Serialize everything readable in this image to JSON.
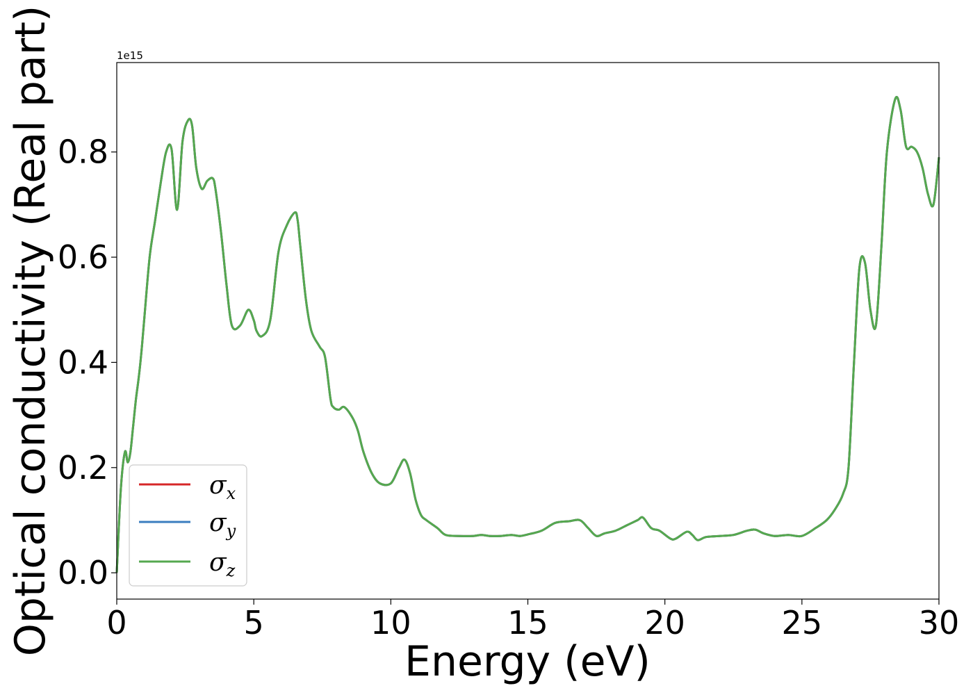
{
  "chart_data": {
    "type": "line",
    "xlabel": "Energy (eV)",
    "ylabel": "Optical conductivity (Real part)",
    "y_offset_label": "1e15",
    "xlim": [
      0,
      30
    ],
    "ylim": [
      -0.05,
      0.97
    ],
    "x_ticks": [
      0,
      5,
      10,
      15,
      20,
      25,
      30
    ],
    "x_tick_labels": [
      "0",
      "5",
      "10",
      "15",
      "20",
      "25",
      "30"
    ],
    "y_ticks": [
      0.0,
      0.2,
      0.4,
      0.6,
      0.8
    ],
    "y_tick_labels": [
      "0.0",
      "0.2",
      "0.4",
      "0.6",
      "0.8"
    ],
    "grid": false,
    "legend_position": "lower-left",
    "colors": {
      "sigma_x": "#d62728",
      "sigma_y": "#3a7dbf",
      "sigma_z": "#55a84f"
    },
    "x": [
      0.0,
      0.15,
      0.3,
      0.4,
      0.5,
      0.6,
      0.7,
      0.8,
      0.9,
      1.0,
      1.2,
      1.4,
      1.6,
      1.8,
      2.0,
      2.2,
      2.4,
      2.6,
      2.75,
      2.9,
      3.1,
      3.3,
      3.5,
      3.6,
      3.8,
      4.0,
      4.2,
      4.5,
      4.8,
      5.0,
      5.1,
      5.3,
      5.6,
      5.9,
      6.2,
      6.5,
      6.6,
      6.7,
      6.9,
      7.1,
      7.4,
      7.6,
      7.8,
      7.9,
      8.1,
      8.3,
      8.6,
      8.8,
      9.0,
      9.3,
      9.6,
      10.0,
      10.3,
      10.5,
      10.7,
      10.9,
      11.1,
      11.3,
      11.7,
      12.0,
      12.5,
      13.0,
      13.3,
      13.6,
      14.0,
      14.4,
      14.7,
      15.0,
      15.5,
      16.0,
      16.5,
      16.9,
      17.2,
      17.5,
      17.8,
      18.2,
      18.6,
      19.0,
      19.2,
      19.5,
      19.8,
      20.2,
      20.4,
      20.8,
      21.0,
      21.2,
      21.5,
      22.0,
      22.5,
      23.0,
      23.3,
      23.6,
      24.0,
      24.5,
      25.0,
      25.5,
      25.9,
      26.2,
      26.5,
      26.7,
      26.9,
      27.1,
      27.3,
      27.5,
      27.7,
      27.9,
      28.1,
      28.4,
      28.6,
      28.8,
      29.0,
      29.2,
      29.4,
      29.6,
      29.8,
      30.0
    ],
    "series": [
      {
        "name": "σx",
        "label_base": "σ",
        "label_sub": "x",
        "values": [
          0.0,
          0.16,
          0.23,
          0.21,
          0.23,
          0.28,
          0.33,
          0.37,
          0.42,
          0.48,
          0.6,
          0.67,
          0.74,
          0.8,
          0.805,
          0.69,
          0.82,
          0.86,
          0.85,
          0.77,
          0.73,
          0.745,
          0.75,
          0.73,
          0.65,
          0.55,
          0.47,
          0.47,
          0.5,
          0.48,
          0.46,
          0.45,
          0.48,
          0.61,
          0.66,
          0.685,
          0.67,
          0.62,
          0.52,
          0.46,
          0.43,
          0.41,
          0.33,
          0.315,
          0.31,
          0.315,
          0.295,
          0.27,
          0.23,
          0.19,
          0.17,
          0.17,
          0.2,
          0.215,
          0.19,
          0.14,
          0.11,
          0.1,
          0.085,
          0.072,
          0.07,
          0.07,
          0.072,
          0.07,
          0.07,
          0.072,
          0.07,
          0.073,
          0.08,
          0.095,
          0.098,
          0.1,
          0.085,
          0.07,
          0.075,
          0.08,
          0.09,
          0.1,
          0.105,
          0.085,
          0.08,
          0.065,
          0.065,
          0.078,
          0.072,
          0.062,
          0.068,
          0.07,
          0.072,
          0.08,
          0.082,
          0.075,
          0.07,
          0.072,
          0.07,
          0.085,
          0.1,
          0.12,
          0.15,
          0.2,
          0.4,
          0.58,
          0.59,
          0.5,
          0.47,
          0.62,
          0.8,
          0.9,
          0.88,
          0.81,
          0.81,
          0.8,
          0.77,
          0.72,
          0.7,
          0.79
        ]
      },
      {
        "name": "σy",
        "label_base": "σ",
        "label_sub": "y",
        "values": [
          0.0,
          0.16,
          0.23,
          0.21,
          0.23,
          0.28,
          0.33,
          0.37,
          0.42,
          0.48,
          0.6,
          0.67,
          0.74,
          0.8,
          0.805,
          0.69,
          0.82,
          0.86,
          0.85,
          0.77,
          0.73,
          0.745,
          0.75,
          0.73,
          0.65,
          0.55,
          0.47,
          0.47,
          0.5,
          0.48,
          0.46,
          0.45,
          0.48,
          0.61,
          0.66,
          0.685,
          0.67,
          0.62,
          0.52,
          0.46,
          0.43,
          0.41,
          0.33,
          0.315,
          0.31,
          0.315,
          0.295,
          0.27,
          0.23,
          0.19,
          0.17,
          0.17,
          0.2,
          0.215,
          0.19,
          0.14,
          0.11,
          0.1,
          0.085,
          0.072,
          0.07,
          0.07,
          0.072,
          0.07,
          0.07,
          0.072,
          0.07,
          0.073,
          0.08,
          0.095,
          0.098,
          0.1,
          0.085,
          0.07,
          0.075,
          0.08,
          0.09,
          0.1,
          0.105,
          0.085,
          0.08,
          0.065,
          0.065,
          0.078,
          0.072,
          0.062,
          0.068,
          0.07,
          0.072,
          0.08,
          0.082,
          0.075,
          0.07,
          0.072,
          0.07,
          0.085,
          0.1,
          0.12,
          0.15,
          0.2,
          0.4,
          0.58,
          0.59,
          0.5,
          0.47,
          0.62,
          0.8,
          0.9,
          0.88,
          0.81,
          0.81,
          0.8,
          0.77,
          0.72,
          0.7,
          0.79
        ]
      },
      {
        "name": "σz",
        "label_base": "σ",
        "label_sub": "z",
        "values": [
          0.0,
          0.16,
          0.23,
          0.21,
          0.23,
          0.28,
          0.33,
          0.37,
          0.42,
          0.48,
          0.6,
          0.67,
          0.74,
          0.8,
          0.805,
          0.69,
          0.82,
          0.86,
          0.85,
          0.77,
          0.73,
          0.745,
          0.75,
          0.73,
          0.65,
          0.55,
          0.47,
          0.47,
          0.5,
          0.48,
          0.46,
          0.45,
          0.48,
          0.61,
          0.66,
          0.685,
          0.67,
          0.62,
          0.52,
          0.46,
          0.43,
          0.41,
          0.33,
          0.315,
          0.31,
          0.315,
          0.295,
          0.27,
          0.23,
          0.19,
          0.17,
          0.17,
          0.2,
          0.215,
          0.19,
          0.14,
          0.11,
          0.1,
          0.085,
          0.072,
          0.07,
          0.07,
          0.072,
          0.07,
          0.07,
          0.072,
          0.07,
          0.073,
          0.08,
          0.095,
          0.098,
          0.1,
          0.085,
          0.07,
          0.075,
          0.08,
          0.09,
          0.1,
          0.105,
          0.085,
          0.08,
          0.065,
          0.065,
          0.078,
          0.072,
          0.062,
          0.068,
          0.07,
          0.072,
          0.08,
          0.082,
          0.075,
          0.07,
          0.072,
          0.07,
          0.085,
          0.1,
          0.12,
          0.15,
          0.2,
          0.4,
          0.58,
          0.59,
          0.5,
          0.47,
          0.62,
          0.8,
          0.9,
          0.88,
          0.81,
          0.81,
          0.8,
          0.77,
          0.72,
          0.7,
          0.79
        ]
      }
    ]
  }
}
